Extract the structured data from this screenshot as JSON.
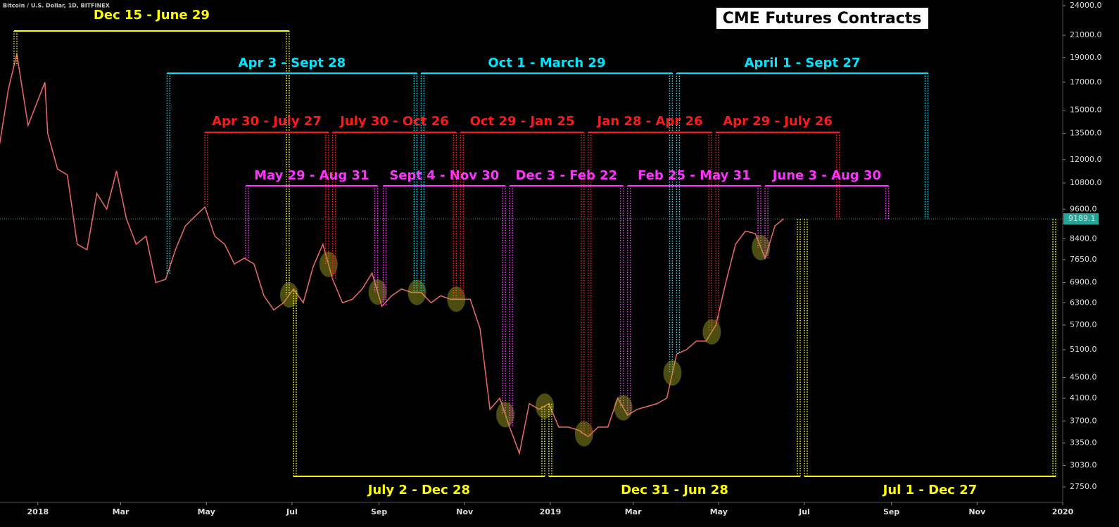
{
  "chart_data": {
    "type": "line",
    "subtitle": "Bitcoin / U.S. Dollar, 1D, BITFINEX",
    "title": "CME Futures Contracts",
    "log_scale": true,
    "color": "#e06666",
    "x": [
      "2017-12-04",
      "2017-12-11",
      "2017-12-17",
      "2017-12-25",
      "2018-01-06",
      "2018-01-08",
      "2018-01-15",
      "2018-01-22",
      "2018-01-29",
      "2018-02-05",
      "2018-02-12",
      "2018-02-19",
      "2018-02-26",
      "2018-03-05",
      "2018-03-12",
      "2018-03-19",
      "2018-03-26",
      "2018-04-02",
      "2018-04-09",
      "2018-04-16",
      "2018-04-23",
      "2018-04-30",
      "2018-05-07",
      "2018-05-14",
      "2018-05-21",
      "2018-05-28",
      "2018-06-04",
      "2018-06-11",
      "2018-06-18",
      "2018-06-25",
      "2018-07-02",
      "2018-07-09",
      "2018-07-16",
      "2018-07-23",
      "2018-07-30",
      "2018-08-06",
      "2018-08-13",
      "2018-08-20",
      "2018-08-27",
      "2018-09-03",
      "2018-09-10",
      "2018-09-17",
      "2018-09-24",
      "2018-10-01",
      "2018-10-08",
      "2018-10-15",
      "2018-10-22",
      "2018-10-29",
      "2018-11-05",
      "2018-11-12",
      "2018-11-19",
      "2018-11-26",
      "2018-12-03",
      "2018-12-10",
      "2018-12-17",
      "2018-12-24",
      "2018-12-31",
      "2019-01-07",
      "2019-01-14",
      "2019-01-21",
      "2019-01-28",
      "2019-02-04",
      "2019-02-11",
      "2019-02-18",
      "2019-02-25",
      "2019-03-04",
      "2019-03-11",
      "2019-03-18",
      "2019-03-25",
      "2019-04-01",
      "2019-04-08",
      "2019-04-15",
      "2019-04-22",
      "2019-04-29",
      "2019-05-06",
      "2019-05-13",
      "2019-05-20",
      "2019-05-27",
      "2019-06-03",
      "2019-06-10",
      "2019-06-16"
    ],
    "values": [
      12500,
      16500,
      19300,
      14000,
      17000,
      13500,
      11500,
      11200,
      8200,
      8000,
      10300,
      9600,
      11400,
      9200,
      8200,
      8500,
      6900,
      7000,
      8000,
      8900,
      9300,
      9700,
      8500,
      8200,
      7500,
      7700,
      7500,
      6500,
      6100,
      6300,
      6700,
      6300,
      7400,
      8200,
      7000,
      6300,
      6400,
      6700,
      7200,
      6200,
      6500,
      6700,
      6600,
      6600,
      6300,
      6500,
      6400,
      6400,
      6400,
      5600,
      3900,
      4100,
      3600,
      3200,
      4000,
      3900,
      4000,
      3600,
      3600,
      3550,
      3450,
      3600,
      3600,
      4100,
      3800,
      3900,
      3950,
      4000,
      4100,
      5000,
      5100,
      5300,
      5300,
      5700,
      6900,
      8200,
      8700,
      8600,
      7700,
      8900,
      9189.1
    ],
    "xlim": [
      "2017-12-05",
      "2020-01-01"
    ],
    "xticks": [
      {
        "value": "2018-01-01",
        "label": "2018"
      },
      {
        "value": "2018-03-01",
        "label": "Mar"
      },
      {
        "value": "2018-05-01",
        "label": "May"
      },
      {
        "value": "2018-07-01",
        "label": "Jul"
      },
      {
        "value": "2018-09-01",
        "label": "Sep"
      },
      {
        "value": "2018-11-01",
        "label": "Nov"
      },
      {
        "value": "2019-01-01",
        "label": "2019"
      },
      {
        "value": "2019-03-01",
        "label": "Mar"
      },
      {
        "value": "2019-05-01",
        "label": "May"
      },
      {
        "value": "2019-07-01",
        "label": "Jul"
      },
      {
        "value": "2019-09-01",
        "label": "Sep"
      },
      {
        "value": "2019-11-01",
        "label": "Nov"
      },
      {
        "value": "2020-01-01",
        "label": "2020"
      }
    ],
    "ylim": [
      2573,
      24616
    ],
    "yticks": [
      {
        "value": 24000,
        "label": "24000.0"
      },
      {
        "value": 21000,
        "label": "21000.0"
      },
      {
        "value": 19000,
        "label": "19000.0"
      },
      {
        "value": 17000,
        "label": "17000.0"
      },
      {
        "value": 15000,
        "label": "15000.0"
      },
      {
        "value": 13500,
        "label": "13500.0"
      },
      {
        "value": 12000,
        "label": "12000.0"
      },
      {
        "value": 10800,
        "label": "10800.0"
      },
      {
        "value": 9600,
        "label": "9600.0"
      },
      {
        "value": 8400,
        "label": "8400.0"
      },
      {
        "value": 7650,
        "label": "7650.0"
      },
      {
        "value": 6900,
        "label": "6900.0"
      },
      {
        "value": 6300,
        "label": "6300.0"
      },
      {
        "value": 5700,
        "label": "5700.0"
      },
      {
        "value": 5100,
        "label": "5100.0"
      },
      {
        "value": 4500,
        "label": "4500.0"
      },
      {
        "value": 4100,
        "label": "4100.0"
      },
      {
        "value": 3700,
        "label": "3700.0"
      },
      {
        "value": 3350,
        "label": "3350.0"
      },
      {
        "value": 3030,
        "label": "3030.0"
      },
      {
        "value": 2750,
        "label": "2750.0"
      }
    ],
    "annotations": [
      {
        "text": "Dec 15 - June 29",
        "color": "#ffff00",
        "start": "2017-12-15",
        "end": "2018-06-29"
      },
      {
        "text": "July 2 - Dec 28",
        "color": "#ffff00",
        "start": "2018-07-02",
        "end": "2018-12-28"
      },
      {
        "text": "Dec 31 - Jun 28",
        "color": "#ffff00",
        "start": "2018-12-31",
        "end": "2019-06-28"
      },
      {
        "text": "Jul 1 - Dec 27",
        "color": "#ffff00",
        "start": "2019-07-01",
        "end": "2019-12-27"
      },
      {
        "text": "Apr 3 - Sept 28",
        "color": "#00e5ff",
        "start": "2018-04-03",
        "end": "2018-09-28"
      },
      {
        "text": "Oct 1 - March 29",
        "color": "#00e5ff",
        "start": "2018-10-01",
        "end": "2019-03-29"
      },
      {
        "text": "April 1 - Sept 27",
        "color": "#00e5ff",
        "start": "2019-04-01",
        "end": "2019-09-27"
      },
      {
        "text": "Apr 30 - July 27",
        "color": "#ff1a1a",
        "start": "2018-04-30",
        "end": "2018-07-27"
      },
      {
        "text": "July 30 - Oct 26",
        "color": "#ff1a1a",
        "start": "2018-07-30",
        "end": "2018-10-26"
      },
      {
        "text": "Oct 29 - Jan 25",
        "color": "#ff1a1a",
        "start": "2018-10-29",
        "end": "2019-01-25"
      },
      {
        "text": "Jan 28 - Apr 26",
        "color": "#ff1a1a",
        "start": "2019-01-28",
        "end": "2019-04-26"
      },
      {
        "text": "Apr 29 - July 26",
        "color": "#ff1a1a",
        "start": "2019-04-29",
        "end": "2019-07-26"
      },
      {
        "text": "May 29 - Aug 31",
        "color": "#ff33ff",
        "start": "2018-05-29",
        "end": "2018-08-31"
      },
      {
        "text": "Sept 4 - Nov 30",
        "color": "#ff33ff",
        "start": "2018-09-04",
        "end": "2018-11-30"
      },
      {
        "text": "Dec 3 - Feb 22",
        "color": "#ff33ff",
        "start": "2018-12-03",
        "end": "2019-02-22"
      },
      {
        "text": "Feb 25 - May 31",
        "color": "#ff33ff",
        "start": "2019-02-25",
        "end": "2019-05-31"
      },
      {
        "text": "June 3 - Aug 30",
        "color": "#ff33ff",
        "start": "2019-06-03",
        "end": "2019-08-30"
      }
    ]
  }
}
